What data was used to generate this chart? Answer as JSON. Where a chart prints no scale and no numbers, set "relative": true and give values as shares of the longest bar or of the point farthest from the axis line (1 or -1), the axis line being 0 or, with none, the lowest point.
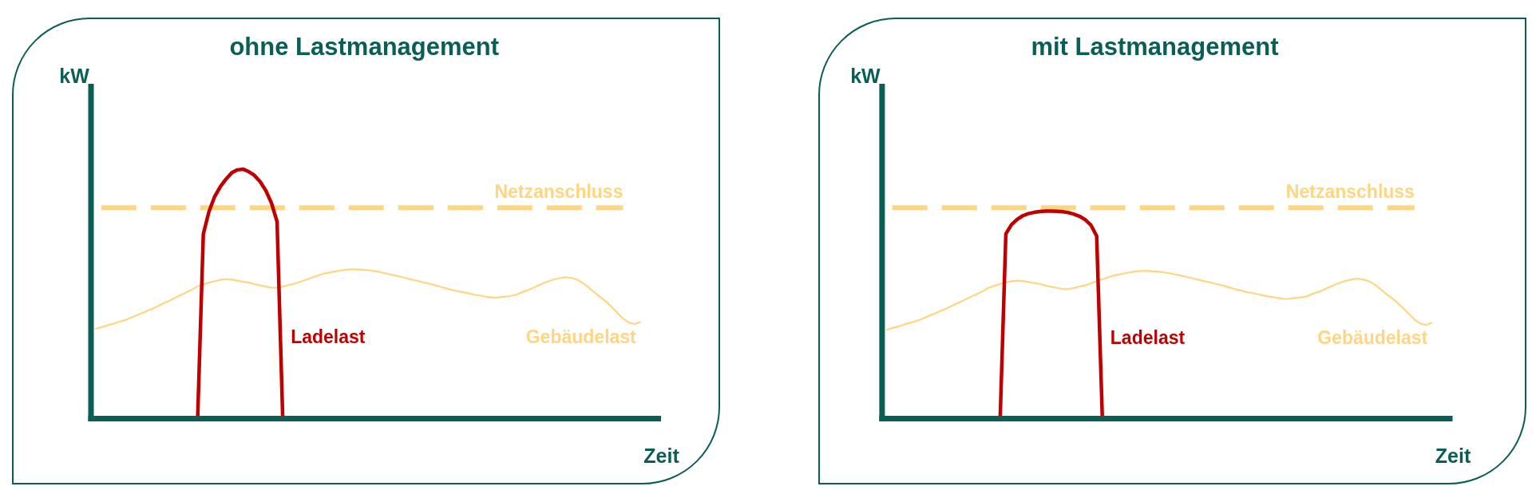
{
  "chart_data": [
    {
      "type": "line",
      "title": "ohne Lastmanagement",
      "xlabel": "Zeit",
      "ylabel": "kW",
      "relative": true,
      "categories": [
        null,
        null,
        null,
        null,
        null,
        null,
        null,
        null,
        null,
        null,
        null,
        null,
        null,
        null,
        null,
        null,
        null,
        null,
        null,
        null,
        null,
        null,
        null,
        null,
        null,
        null,
        null,
        null,
        null,
        null,
        null,
        null,
        null,
        null,
        null,
        null,
        null,
        null,
        null,
        null,
        null,
        null,
        null,
        null,
        null,
        null,
        null,
        null,
        null,
        null,
        null,
        null,
        null,
        null,
        null,
        null,
        null,
        null,
        null,
        null,
        null,
        null,
        null,
        null,
        null,
        null,
        null,
        null,
        null,
        null,
        null,
        null,
        null,
        null,
        null,
        null,
        null,
        null,
        null,
        null,
        null,
        null,
        null,
        null,
        null,
        null,
        null,
        null,
        null,
        null,
        null,
        null,
        null,
        null,
        null,
        null,
        null
      ],
      "series": [
        {
          "name": "Gebäudelast",
          "color": "#ffd580",
          "values": [
            0.36,
            0.366,
            0.373,
            0.38,
            0.387,
            0.393,
            0.402,
            0.412,
            0.421,
            0.431,
            0.44,
            0.451,
            0.462,
            0.473,
            0.484,
            0.495,
            0.506,
            0.517,
            0.53,
            0.538,
            0.545,
            0.551,
            0.556,
            0.559,
            0.557,
            0.553,
            0.549,
            0.545,
            0.539,
            0.534,
            0.529,
            0.525,
            0.524,
            0.529,
            0.535,
            0.54,
            0.548,
            0.556,
            0.564,
            0.572,
            0.58,
            0.584,
            0.589,
            0.593,
            0.596,
            0.598,
            0.598,
            0.597,
            0.595,
            0.592,
            0.588,
            0.583,
            0.578,
            0.573,
            0.567,
            0.562,
            0.556,
            0.551,
            0.545,
            0.54,
            0.534,
            0.527,
            0.521,
            0.515,
            0.51,
            0.506,
            0.501,
            0.496,
            0.492,
            0.488,
            0.485,
            0.486,
            0.488,
            0.491,
            0.495,
            0.505,
            0.513,
            0.522,
            0.533,
            0.543,
            0.552,
            0.559,
            0.564,
            0.567,
            0.563,
            0.556,
            0.542,
            0.524,
            0.505,
            0.487,
            0.469,
            0.447,
            0.424,
            0.401,
            0.385,
            0.379,
            0.387
          ]
        },
        {
          "name": "Ladelast",
          "color": "#c00000",
          "values": [
            null,
            null,
            null,
            null,
            null,
            null,
            null,
            null,
            null,
            null,
            null,
            null,
            null,
            null,
            null,
            null,
            null,
            null,
            0,
            0.74,
            0.83,
            0.89,
            0.93,
            0.96,
            0.985,
            0.997,
            1,
            0.99,
            0.975,
            0.95,
            0.915,
            0.865,
            0.79,
            0,
            null,
            null,
            null,
            null,
            null,
            null,
            null,
            null,
            null,
            null,
            null,
            null,
            null,
            null,
            null,
            null,
            null,
            null,
            null,
            null,
            null,
            null,
            null,
            null,
            null,
            null,
            null,
            null,
            null,
            null,
            null,
            null,
            null,
            null,
            null,
            null,
            null,
            null,
            null,
            null,
            null,
            null,
            null,
            null,
            null,
            null,
            null,
            null,
            null,
            null,
            null,
            null,
            null,
            null,
            null,
            null,
            null,
            null,
            null,
            null,
            null,
            null,
            null
          ]
        }
      ],
      "ref_lines": [
        {
          "axis": "y",
          "value": 0.845,
          "label": "Netzanschluss",
          "color": "#ffd580",
          "line_style": "dashed"
        }
      ]
    },
    {
      "type": "line",
      "title": "mit Lastmanagement",
      "xlabel": "Zeit",
      "ylabel": "kW",
      "relative": true,
      "categories": [
        null,
        null,
        null,
        null,
        null,
        null,
        null,
        null,
        null,
        null,
        null,
        null,
        null,
        null,
        null,
        null,
        null,
        null,
        null,
        null,
        null,
        null,
        null,
        null,
        null,
        null,
        null,
        null,
        null,
        null,
        null,
        null,
        null,
        null,
        null,
        null,
        null,
        null,
        null,
        null,
        null,
        null,
        null,
        null,
        null,
        null,
        null,
        null,
        null,
        null,
        null,
        null,
        null,
        null,
        null,
        null,
        null,
        null,
        null,
        null,
        null,
        null,
        null,
        null,
        null,
        null,
        null,
        null,
        null,
        null,
        null,
        null,
        null,
        null,
        null,
        null,
        null,
        null,
        null,
        null,
        null,
        null,
        null,
        null,
        null,
        null,
        null,
        null,
        null,
        null,
        null,
        null,
        null,
        null,
        null,
        null,
        null
      ],
      "series": [
        {
          "name": "Gebäudelast",
          "color": "#ffd580",
          "values": [
            0.428,
            0.436,
            0.444,
            0.452,
            0.461,
            0.468,
            0.478,
            0.49,
            0.501,
            0.513,
            0.524,
            0.537,
            0.55,
            0.563,
            0.576,
            0.589,
            0.602,
            0.615,
            0.631,
            0.64,
            0.649,
            0.656,
            0.662,
            0.665,
            0.663,
            0.658,
            0.653,
            0.649,
            0.641,
            0.635,
            0.63,
            0.625,
            0.624,
            0.63,
            0.637,
            0.643,
            0.652,
            0.662,
            0.671,
            0.681,
            0.69,
            0.695,
            0.701,
            0.706,
            0.709,
            0.712,
            0.712,
            0.71,
            0.708,
            0.704,
            0.7,
            0.694,
            0.688,
            0.682,
            0.675,
            0.669,
            0.662,
            0.656,
            0.649,
            0.643,
            0.635,
            0.627,
            0.62,
            0.613,
            0.607,
            0.602,
            0.596,
            0.59,
            0.585,
            0.581,
            0.577,
            0.578,
            0.581,
            0.584,
            0.589,
            0.601,
            0.61,
            0.621,
            0.634,
            0.646,
            0.657,
            0.665,
            0.671,
            0.675,
            0.67,
            0.662,
            0.645,
            0.624,
            0.601,
            0.58,
            0.558,
            0.532,
            0.505,
            0.477,
            0.458,
            0.451,
            0.461
          ]
        },
        {
          "name": "Ladelast",
          "color": "#c00000",
          "values": [
            null,
            null,
            null,
            null,
            null,
            null,
            null,
            null,
            null,
            null,
            null,
            null,
            null,
            null,
            null,
            null,
            null,
            null,
            null,
            null,
            0,
            0.89,
            0.935,
            0.96,
            0.978,
            0.988,
            0.994,
            0.998,
            1,
            1,
            0.999,
            0.997,
            0.993,
            0.985,
            0.975,
            0.958,
            0.932,
            0.88,
            0,
            null,
            null,
            null,
            null,
            null,
            null,
            null,
            null,
            null,
            null,
            null,
            null,
            null,
            null,
            null,
            null,
            null,
            null,
            null,
            null,
            null,
            null,
            null,
            null,
            null,
            null,
            null,
            null,
            null,
            null,
            null,
            null,
            null,
            null,
            null,
            null,
            null,
            null,
            null,
            null,
            null,
            null,
            null,
            null,
            null,
            null,
            null,
            null,
            null,
            null,
            null,
            null,
            null,
            null,
            null,
            null,
            null,
            null
          ]
        }
      ],
      "ref_lines": [
        {
          "axis": "y",
          "value": 1.016,
          "label": "Netzanschluss",
          "color": "#ffd580",
          "line_style": "dashed"
        }
      ]
    }
  ]
}
